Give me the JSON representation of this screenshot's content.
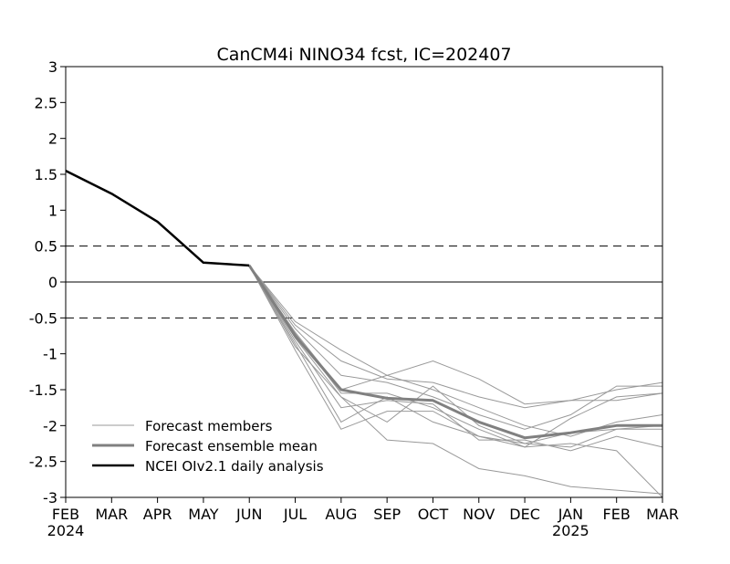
{
  "chart_data": {
    "type": "line",
    "title": "CanCM4i NINO34 fcst, IC=202407",
    "xlabel": "",
    "ylabel": "",
    "x_ticks": [
      "FEB",
      "MAR",
      "APR",
      "MAY",
      "JUN",
      "JUL",
      "AUG",
      "SEP",
      "OCT",
      "NOV",
      "DEC",
      "JAN",
      "FEB",
      "MAR"
    ],
    "year_labels": [
      {
        "tick_index": 0,
        "label": "2024"
      },
      {
        "tick_index": 11,
        "label": "2025"
      }
    ],
    "ylim": [
      -3,
      3
    ],
    "y_ticks": [
      "-3",
      "-2.5",
      "-2",
      "-1.5",
      "-1",
      "-0.5",
      "0",
      "0.5",
      "1",
      "1.5",
      "2",
      "2.5",
      "3"
    ],
    "reference_lines": [
      {
        "y": 0.5,
        "style": "dashed"
      },
      {
        "y": 0,
        "style": "solid"
      },
      {
        "y": -0.5,
        "style": "dashed"
      }
    ],
    "grid": false,
    "legend_position": "bottom-left",
    "legend": [
      {
        "label": "Forecast members",
        "color": "#999999"
      },
      {
        "label": "Forecast ensemble mean",
        "color": "#808080"
      },
      {
        "label": "NCEI OIv2.1 daily analysis",
        "color": "#000000"
      }
    ],
    "series": [
      {
        "role": "analysis",
        "x": [
          0,
          1,
          2,
          3,
          4
        ],
        "values": [
          1.55,
          1.23,
          0.84,
          0.27,
          0.23
        ]
      },
      {
        "role": "ensemble-mean",
        "x": [
          4,
          5,
          6,
          7,
          8,
          9,
          10,
          11,
          12,
          13
        ],
        "values": [
          0.23,
          -0.75,
          -1.5,
          -1.62,
          -1.65,
          -1.95,
          -2.17,
          -2.1,
          -2.0,
          -2.0
        ]
      }
    ],
    "members": [
      {
        "x": [
          4,
          5,
          6,
          7,
          8,
          9,
          10,
          11,
          12,
          13
        ],
        "values": [
          0.23,
          -0.55,
          -0.95,
          -1.3,
          -1.1,
          -1.35,
          -1.7,
          -1.65,
          -1.5,
          -1.4
        ]
      },
      {
        "x": [
          4,
          5,
          6,
          7,
          8,
          9,
          10,
          11,
          12,
          13
        ],
        "values": [
          0.23,
          -0.6,
          -1.1,
          -1.35,
          -1.4,
          -1.6,
          -1.75,
          -1.65,
          -1.65,
          -1.55
        ]
      },
      {
        "x": [
          4,
          5,
          6,
          7,
          8,
          9,
          10,
          11,
          12,
          13
        ],
        "values": [
          0.23,
          -0.65,
          -1.3,
          -1.4,
          -1.6,
          -1.85,
          -2.05,
          -1.85,
          -1.45,
          -1.45
        ]
      },
      {
        "x": [
          4,
          5,
          6,
          7,
          8,
          9,
          10,
          11,
          12,
          13
        ],
        "values": [
          0.23,
          -0.7,
          -1.5,
          -1.3,
          -1.5,
          -1.75,
          -2.0,
          -2.15,
          -1.95,
          -1.85
        ]
      },
      {
        "x": [
          4,
          5,
          6,
          7,
          8,
          9,
          10,
          11,
          12,
          13
        ],
        "values": [
          0.23,
          -0.72,
          -1.55,
          -1.55,
          -1.75,
          -2.05,
          -2.3,
          -1.9,
          -1.6,
          -1.55
        ]
      },
      {
        "x": [
          4,
          5,
          6,
          7,
          8,
          9,
          10,
          11,
          12,
          13
        ],
        "values": [
          0.23,
          -0.78,
          -1.6,
          -1.95,
          -1.45,
          -2.0,
          -2.25,
          -2.3,
          -2.05,
          -2.05
        ]
      },
      {
        "x": [
          4,
          5,
          6,
          7,
          8,
          9,
          10,
          11,
          12,
          13
        ],
        "values": [
          0.23,
          -0.82,
          -1.75,
          -1.65,
          -1.7,
          -2.2,
          -2.2,
          -2.35,
          -2.15,
          -2.3
        ]
      },
      {
        "x": [
          4,
          5,
          6,
          7,
          8,
          9,
          10,
          11,
          12,
          13
        ],
        "values": [
          0.23,
          -0.86,
          -1.95,
          -1.6,
          -1.95,
          -2.15,
          -2.25,
          -2.1,
          -2.05,
          -2.0
        ]
      },
      {
        "x": [
          4,
          5,
          6,
          7,
          8,
          9,
          10,
          11,
          12,
          13
        ],
        "values": [
          0.23,
          -0.9,
          -1.6,
          -2.2,
          -2.25,
          -2.6,
          -2.7,
          -2.85,
          -2.9,
          -2.95
        ]
      },
      {
        "x": [
          4,
          5,
          6,
          7,
          8,
          9,
          10,
          11,
          12,
          13
        ],
        "values": [
          0.23,
          -0.95,
          -2.05,
          -1.8,
          -1.8,
          -2.15,
          -2.3,
          -2.25,
          -2.35,
          -3.0
        ]
      }
    ]
  }
}
